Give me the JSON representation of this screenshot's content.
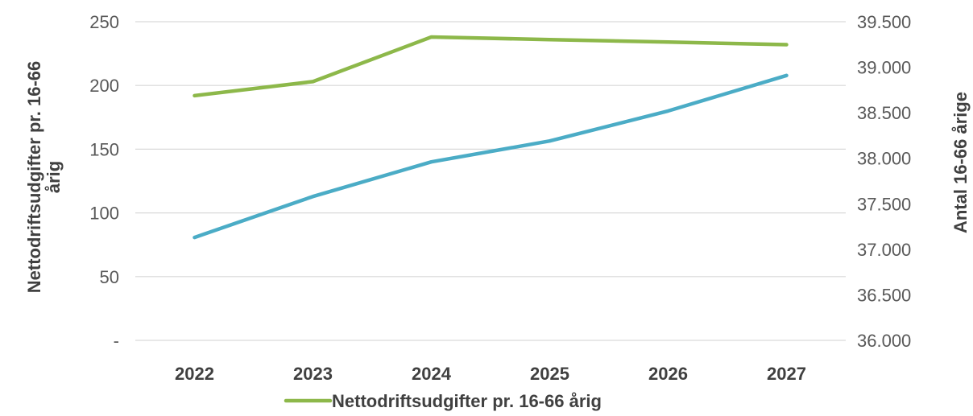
{
  "chart_data": {
    "type": "line",
    "categories": [
      "2022",
      "2023",
      "2024",
      "2025",
      "2026",
      "2027"
    ],
    "series": [
      {
        "name": "Nettodriftsudgifter pr. 16-66 årig",
        "axis": "left",
        "color": "#8db84a",
        "values": [
          192,
          203,
          238,
          236,
          234,
          232
        ]
      },
      {
        "axis": "right",
        "color": "#4bacc6",
        "values": [
          37130,
          37580,
          37960,
          38190,
          38520,
          38910
        ]
      }
    ],
    "y_left": {
      "label": "Nettodriftsudgifter pr. 16-66 årig",
      "label_lines": [
        "Nettodriftsudgifter pr. 16-66",
        "årig"
      ],
      "ylim": [
        0,
        250
      ],
      "ticks": [
        0,
        50,
        100,
        150,
        200,
        250
      ],
      "tick_labels": [
        "-",
        "50",
        "100",
        "150",
        "200",
        "250"
      ]
    },
    "y_right": {
      "label": "Antal 16-66 årige",
      "ylim": [
        36000,
        39500
      ],
      "ticks": [
        36000,
        36500,
        37000,
        37500,
        38000,
        38500,
        39000,
        39500
      ],
      "tick_labels": [
        "36.000",
        "36.500",
        "37.000",
        "37.500",
        "38.000",
        "38.500",
        "39.000",
        "39.500"
      ]
    },
    "grid": true,
    "legend": {
      "position": "bottom",
      "entries": [
        "Nettodriftsudgifter pr. 16-66 årig"
      ]
    }
  }
}
